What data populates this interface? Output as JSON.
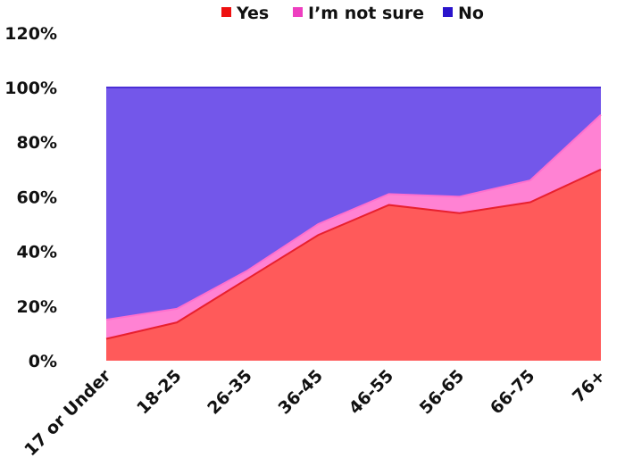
{
  "chart_data": {
    "type": "area",
    "stacked": true,
    "percent_stacked": true,
    "categories": [
      "17 or Under",
      "18-25",
      "26-35",
      "36-45",
      "46-55",
      "56-65",
      "66-75",
      "76+"
    ],
    "series": [
      {
        "name": "Yes",
        "color": "#ff5a5a",
        "line_color": "#e8202e",
        "values": [
          8,
          14,
          30,
          46,
          57,
          54,
          58,
          70
        ]
      },
      {
        "name": "I’m not sure",
        "color": "#ff82d3",
        "line_color": "#ff6fce",
        "values": [
          7,
          5,
          3,
          4,
          4,
          6,
          8,
          20
        ]
      },
      {
        "name": "No",
        "color": "#7357ea",
        "line_color": "#4b2fd6",
        "values": [
          85,
          81,
          67,
          50,
          39,
          40,
          34,
          10
        ]
      }
    ],
    "legend_markers": {
      "Yes": "#ee1111",
      "I’m not sure": "#ee3fc0",
      "No": "#2a14cc"
    },
    "ylim": [
      0,
      120
    ],
    "yticks": [
      "0%",
      "20%",
      "40%",
      "60%",
      "80%",
      "100%",
      "120%"
    ],
    "xlabel": "",
    "ylabel": "",
    "title": "",
    "legend_position": "top",
    "grid": false
  }
}
